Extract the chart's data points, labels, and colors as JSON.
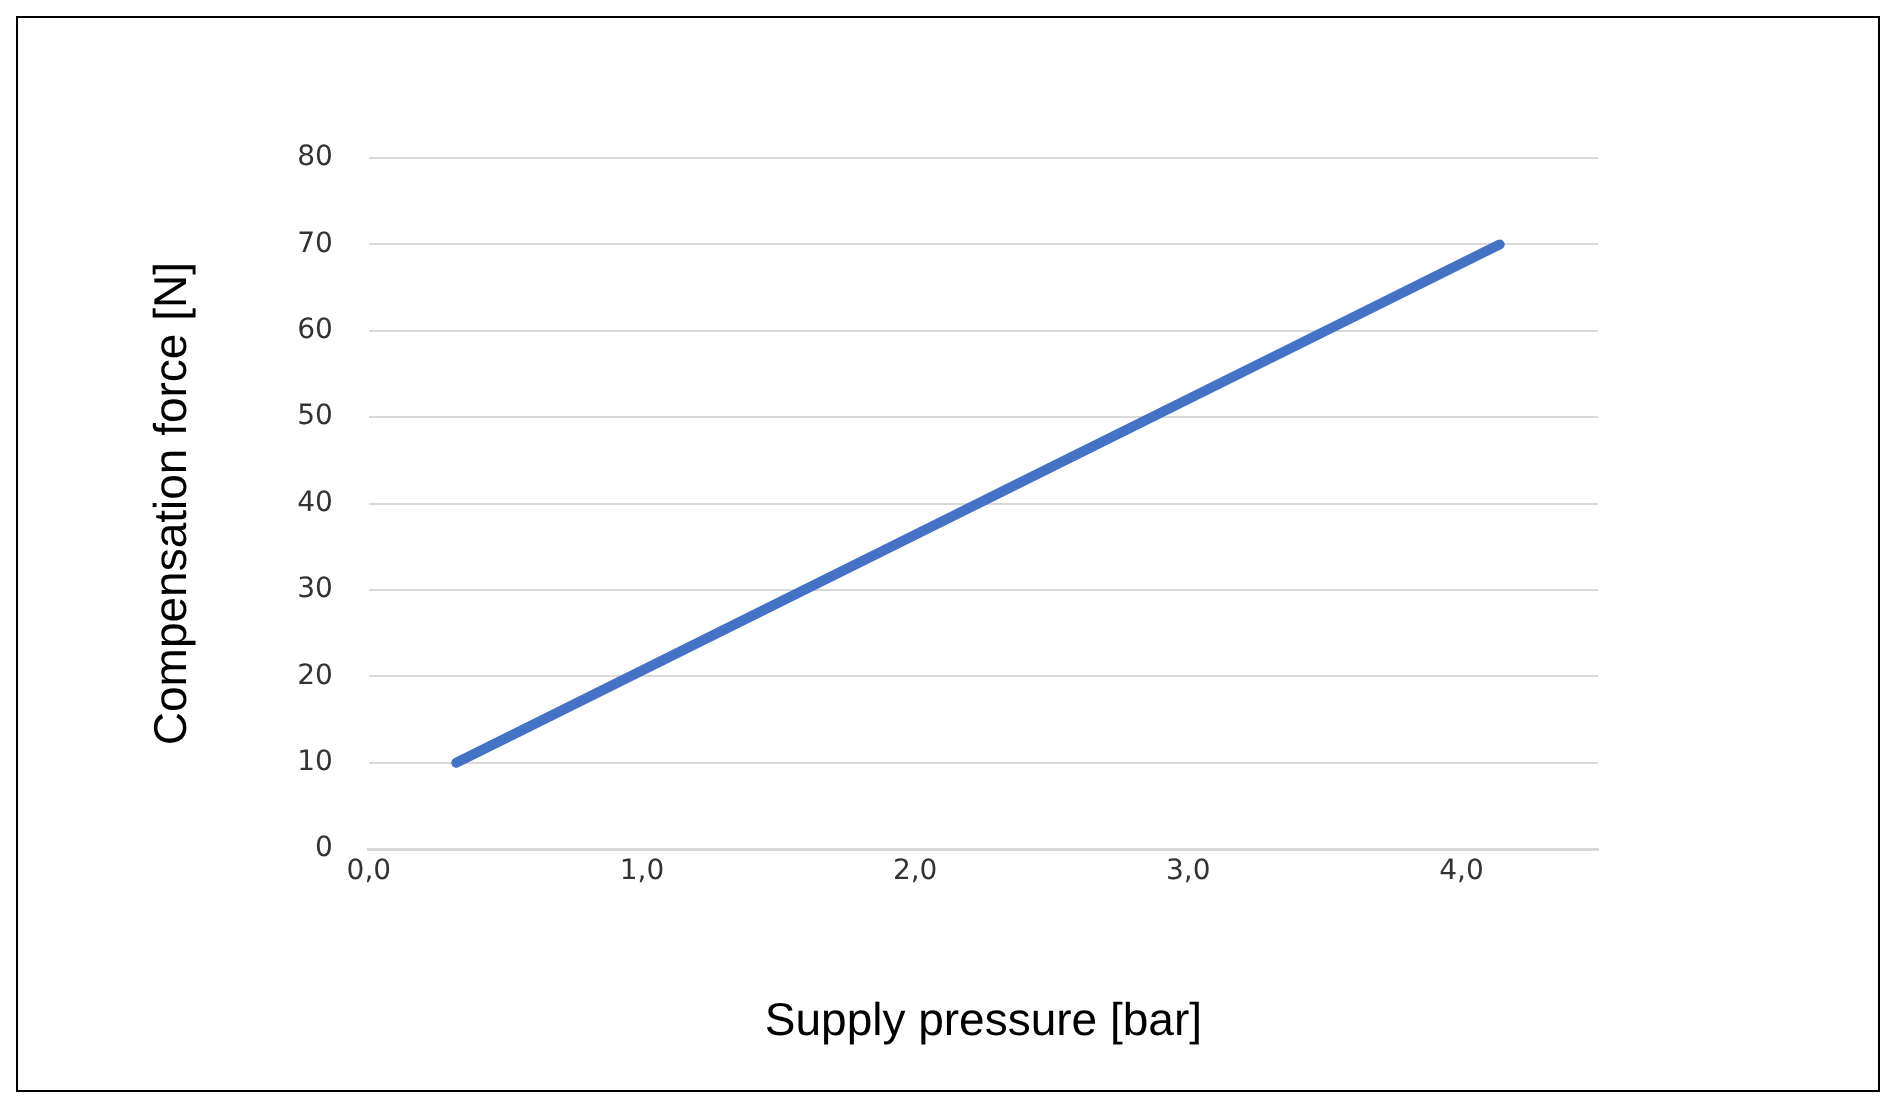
{
  "chart_data": {
    "type": "line",
    "xlabel": "Supply pressure [bar]",
    "ylabel": "Compensation force [N]",
    "series": [
      {
        "color": "#4472c4",
        "x": [
          0.32,
          4.14
        ],
        "values": [
          10,
          70
        ]
      }
    ],
    "xlim": [
      0,
      4.5
    ],
    "xticks": [
      {
        "value": 0,
        "label": "0,0"
      },
      {
        "value": 1,
        "label": "1,0"
      },
      {
        "value": 2,
        "label": "2,0"
      },
      {
        "value": 3,
        "label": "3,0"
      },
      {
        "value": 4,
        "label": "4,0"
      }
    ],
    "ylim": [
      0,
      80
    ],
    "yticks": [
      0,
      10,
      20,
      30,
      40,
      50,
      60,
      70,
      80
    ],
    "grid": "y",
    "legend": false,
    "marker": "none",
    "line_style": "solid"
  }
}
